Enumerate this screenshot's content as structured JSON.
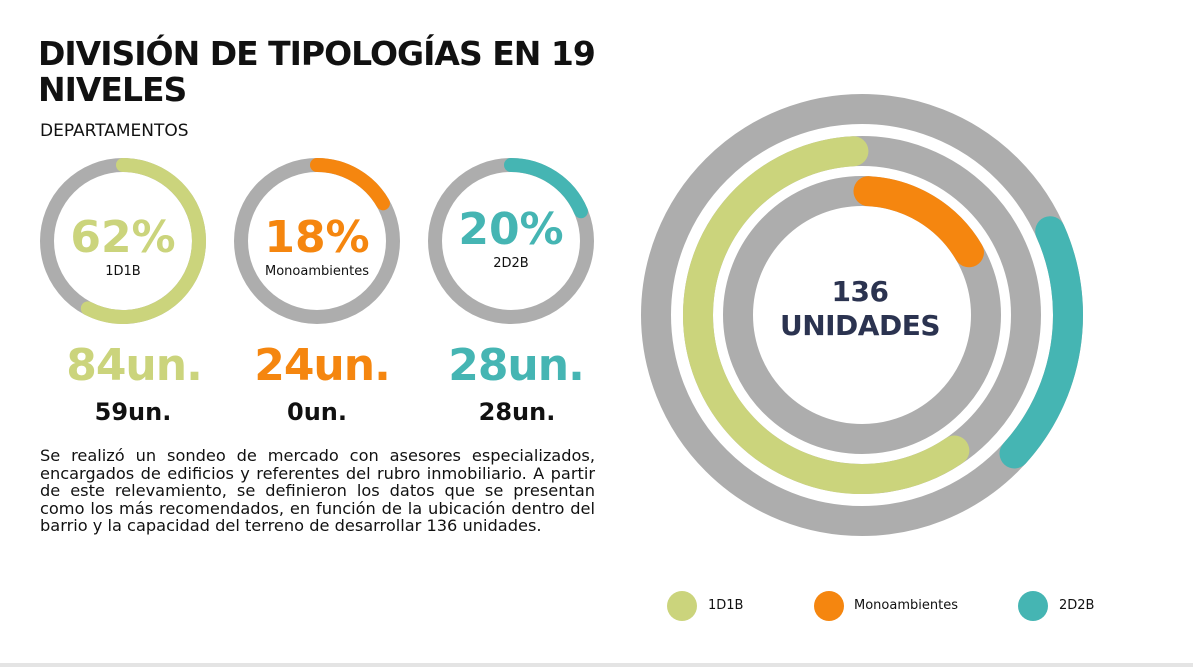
{
  "header": {
    "title": "DIVISIÓN DE TIPOLOGÍAS EN 19 NIVELES",
    "subtitle": "DEPARTAMENTOS"
  },
  "colors": {
    "1D1B": "#cbd47c",
    "Monoambientes": "#f5860f",
    "2D2B": "#45b5b3",
    "track": "#adadad",
    "center_text": "#2b3350"
  },
  "chart_data": [
    {
      "type": "pie",
      "title": "1D1B",
      "value_percent": 62,
      "label": "62%",
      "category": "1D1B",
      "units_label": "84un.",
      "secondary_units_label": "59un."
    },
    {
      "type": "pie",
      "title": "Monoambientes",
      "value_percent": 18,
      "label": "18%",
      "category": "Monoambientes",
      "units_label": "24un.",
      "secondary_units_label": "0un."
    },
    {
      "type": "pie",
      "title": "2D2B",
      "value_percent": 20,
      "label": "20%",
      "category": "2D2B",
      "units_label": "28un.",
      "secondary_units_label": "28un."
    },
    {
      "type": "pie",
      "title": "136 UNIDADES",
      "center_line1": "136",
      "center_line2": "UNIDADES",
      "series": [
        {
          "name": "1D1B",
          "value_percent": 62
        },
        {
          "name": "Monoambientes",
          "value_percent": 18
        },
        {
          "name": "2D2B",
          "value_percent": 20
        }
      ],
      "legend": [
        "1D1B",
        "Monoambientes",
        "2D2B"
      ]
    }
  ],
  "description": "Se realizó un sondeo de mercado con asesores especializados, encargados de edificios y referentes del rubro inmobiliario. A partir de este relevamiento, se definieron los datos que se presentan como los más recomendados, en función de la ubicación dentro del barrio y la capacidad del terreno de desarrollar 136 unidades."
}
